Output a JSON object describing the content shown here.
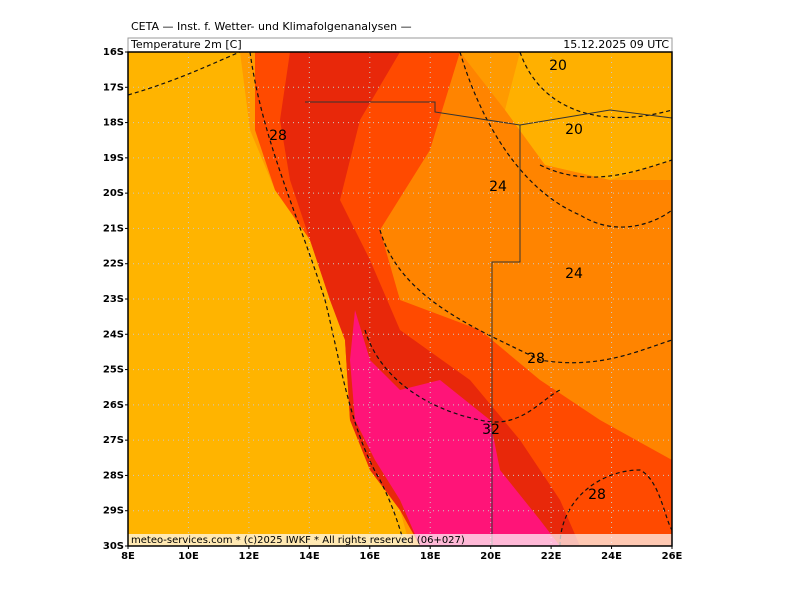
{
  "header": {
    "title": "CETA — Inst. f. Wetter- und Klimafolgenanalysen —",
    "parameter": "Temperature 2m [C]",
    "valid": "15.12.2025 09 UTC"
  },
  "map": {
    "lat_labels": [
      "16S",
      "17S",
      "18S",
      "19S",
      "20S",
      "21S",
      "22S",
      "23S",
      "24S",
      "25S",
      "26S",
      "27S",
      "28S",
      "29S",
      "30S"
    ],
    "lon_labels": [
      "8E",
      "10E",
      "12E",
      "14E",
      "16E",
      "18E",
      "20E",
      "22E",
      "24E",
      "26E"
    ],
    "contour_labels": [
      "20",
      "20",
      "28",
      "24",
      "24",
      "28",
      "32",
      "28"
    ],
    "footer": "meteo-services.com * (c)2025 IWKF * All rights reserved (06+027)"
  }
}
